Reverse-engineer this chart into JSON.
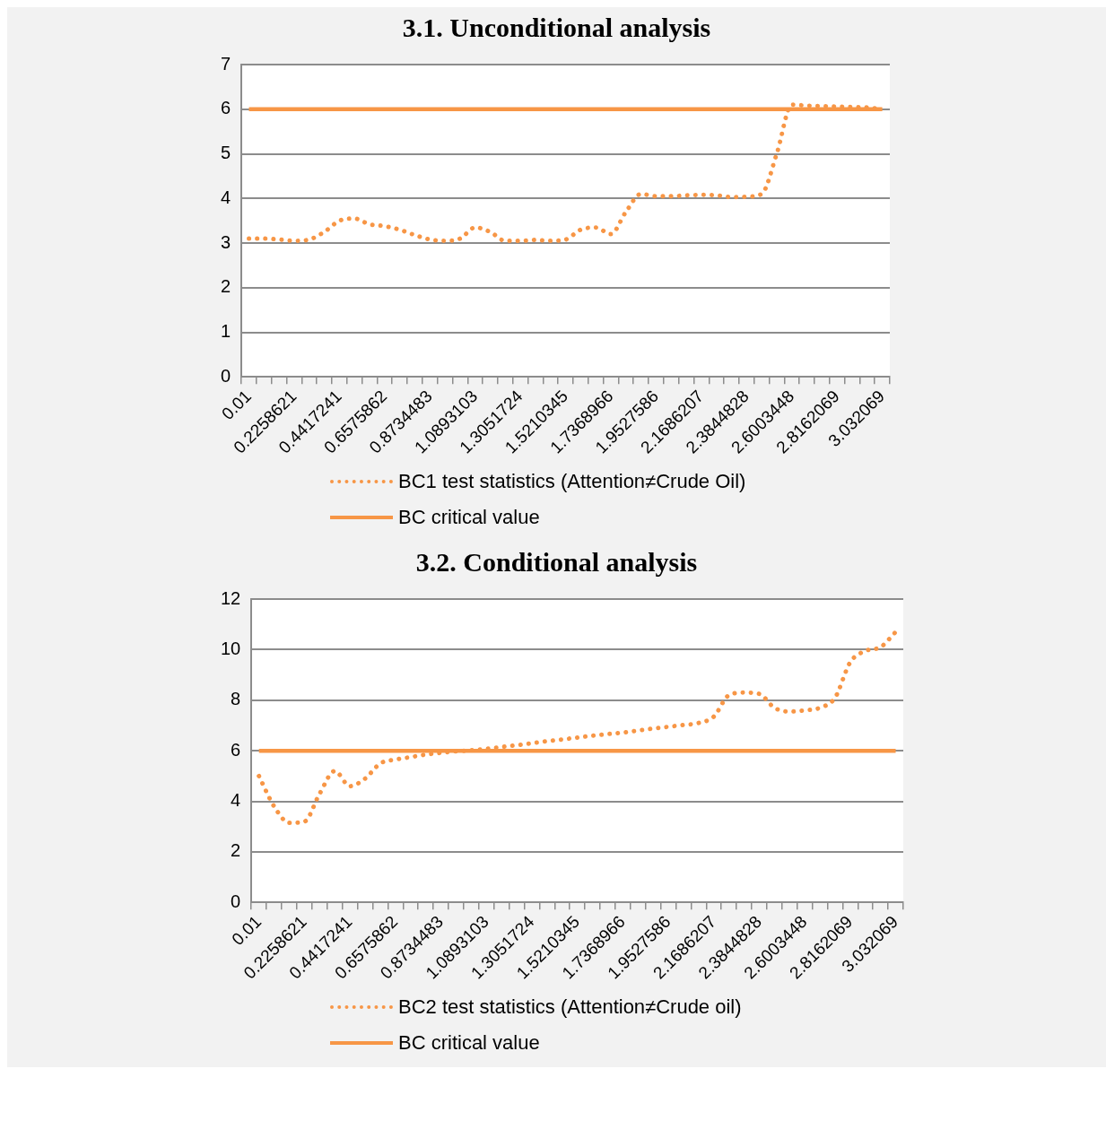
{
  "chart_data": [
    {
      "type": "line",
      "title": "3.1. Unconditional analysis",
      "categories": [
        "0.01",
        null,
        null,
        "0.2258621",
        null,
        null,
        "0.4417241",
        null,
        null,
        "0.6575862",
        null,
        null,
        "0.8734483",
        null,
        null,
        "1.0893103",
        null,
        null,
        "1.3051724",
        null,
        null,
        "1.5210345",
        null,
        null,
        "1.7368966",
        null,
        null,
        "1.9527586",
        null,
        null,
        "2.1686207",
        null,
        null,
        "2.3844828",
        null,
        null,
        "2.6003448",
        null,
        null,
        "2.8162069",
        null,
        null,
        "3.032069"
      ],
      "series": [
        {
          "name": "BC1 test statistics (Attention≠Crude Oil)",
          "color": "#f79646",
          "line_style": "dotted",
          "values": [
            3.1,
            3.1,
            3.08,
            3.05,
            3.08,
            3.25,
            3.5,
            3.55,
            3.42,
            3.38,
            3.3,
            3.18,
            3.08,
            3.05,
            3.1,
            3.35,
            3.25,
            3.05,
            3.05,
            3.07,
            3.05,
            3.08,
            3.3,
            3.35,
            3.2,
            3.7,
            4.1,
            4.05,
            4.05,
            4.07,
            4.08,
            4.07,
            4.03,
            4.04,
            4.1,
            5.0,
            6.1,
            6.08,
            6.07,
            6.06,
            6.05,
            6.04,
            6.0
          ]
        },
        {
          "name": "BC critical value",
          "color": "#f79646",
          "line_style": "solid",
          "values": [
            6,
            6,
            6,
            6,
            6,
            6,
            6,
            6,
            6,
            6,
            6,
            6,
            6,
            6,
            6,
            6,
            6,
            6,
            6,
            6,
            6,
            6,
            6,
            6,
            6,
            6,
            6,
            6,
            6,
            6,
            6,
            6,
            6,
            6,
            6,
            6,
            6,
            6,
            6,
            6,
            6,
            6,
            6
          ]
        }
      ],
      "ylim": [
        0,
        7
      ],
      "yticks": [
        0,
        1,
        2,
        3,
        4,
        5,
        6,
        7
      ],
      "grid": "y",
      "legend": "bottom"
    },
    {
      "type": "line",
      "title": "3.2. Conditional analysis",
      "categories": [
        "0.01",
        null,
        null,
        "0.2258621",
        null,
        null,
        "0.4417241",
        null,
        null,
        "0.6575862",
        null,
        null,
        "0.8734483",
        null,
        null,
        "1.0893103",
        null,
        null,
        "1.3051724",
        null,
        null,
        "1.5210345",
        null,
        null,
        "1.7368966",
        null,
        null,
        "1.9527586",
        null,
        null,
        "2.1686207",
        null,
        null,
        "2.3844828",
        null,
        null,
        "2.6003448",
        null,
        null,
        "2.8162069",
        null,
        null,
        "3.032069"
      ],
      "series": [
        {
          "name": "BC2 test statistics (Attention≠Crude oil)",
          "color": "#f79646",
          "line_style": "dotted",
          "values": [
            5.0,
            3.8,
            3.15,
            3.2,
            4.3,
            5.2,
            4.6,
            4.9,
            5.5,
            5.65,
            5.75,
            5.85,
            5.92,
            5.98,
            6.02,
            6.08,
            6.15,
            6.22,
            6.3,
            6.38,
            6.45,
            6.52,
            6.6,
            6.66,
            6.72,
            6.8,
            6.88,
            6.95,
            7.02,
            7.1,
            7.35,
            8.2,
            8.3,
            8.25,
            7.7,
            7.55,
            7.6,
            7.7,
            8.1,
            9.5,
            9.95,
            10.1,
            10.7
          ]
        },
        {
          "name": "BC critical value",
          "color": "#f79646",
          "line_style": "solid",
          "values": [
            6,
            6,
            6,
            6,
            6,
            6,
            6,
            6,
            6,
            6,
            6,
            6,
            6,
            6,
            6,
            6,
            6,
            6,
            6,
            6,
            6,
            6,
            6,
            6,
            6,
            6,
            6,
            6,
            6,
            6,
            6,
            6,
            6,
            6,
            6,
            6,
            6,
            6,
            6,
            6,
            6,
            6,
            6
          ]
        }
      ],
      "ylim": [
        0,
        12
      ],
      "yticks": [
        0,
        2,
        4,
        6,
        8,
        10,
        12
      ],
      "grid": "y",
      "legend": "bottom"
    }
  ]
}
